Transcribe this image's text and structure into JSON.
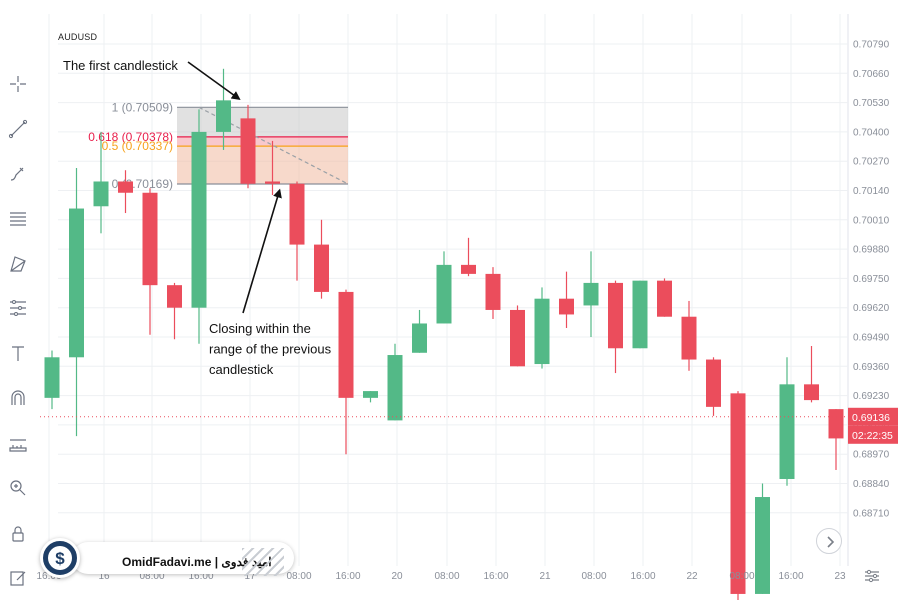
{
  "symbol": "AUDUSD",
  "toolbar": {
    "tools": [
      "crosshair-icon",
      "trend-line-icon",
      "brush-icon",
      "horizontal-lines-icon",
      "pattern-icon",
      "fib-tools-icon",
      "text-icon",
      "magnet-icon",
      "measure-icon",
      "zoom-icon",
      "lock-icon",
      "edit-icon"
    ]
  },
  "watermark": {
    "text": "OmidFadavi.me  |  امید فدوی",
    "coin_symbol": "$"
  },
  "colors": {
    "up": "#53b987",
    "down": "#eb4d5c",
    "grid": "#eef0f3",
    "fib_top_fill": "#c8c8c8",
    "fib_mid_fill": "#f3a3aa",
    "fib_bottom_fill": "#f0b9a0",
    "fib_618": "#e91e4b",
    "fib_05": "#f7a21b",
    "price_badge": "#eb4d5c",
    "coin": "#1e3e66"
  },
  "chart_data": {
    "type": "candlestick",
    "title": "AUDUSD",
    "y_axis": {
      "ticks": [
        "0.70790",
        "0.70660",
        "0.70530",
        "0.70400",
        "0.70270",
        "0.70140",
        "0.70010",
        "0.69880",
        "0.69750",
        "0.69620",
        "0.69490",
        "0.69360",
        "0.69230",
        "0.69100",
        "0.68970",
        "0.68840",
        "0.68710"
      ],
      "ylim": [
        0.6866,
        0.7086
      ]
    },
    "x_axis": {
      "ticks": [
        "16:00",
        "16",
        "08:00",
        "16:00",
        "17",
        "08:00",
        "16:00",
        "20",
        "08:00",
        "16:00",
        "21",
        "08:00",
        "16:00",
        "22",
        "08:00",
        "16:00",
        "23"
      ]
    },
    "current_price": "0.69136",
    "countdown": "02:22:35",
    "candles": [
      {
        "o": 0.6922,
        "h": 0.6943,
        "l": 0.6917,
        "c": 0.694
      },
      {
        "o": 0.694,
        "h": 0.7024,
        "l": 0.6905,
        "c": 0.7006
      },
      {
        "o": 0.7007,
        "h": 0.704,
        "l": 0.6995,
        "c": 0.7018
      },
      {
        "o": 0.7018,
        "h": 0.7023,
        "l": 0.7004,
        "c": 0.7013
      },
      {
        "o": 0.7013,
        "h": 0.7015,
        "l": 0.695,
        "c": 0.6972
      },
      {
        "o": 0.6972,
        "h": 0.6973,
        "l": 0.6948,
        "c": 0.6962
      },
      {
        "o": 0.6962,
        "h": 0.705,
        "l": 0.6946,
        "c": 0.704
      },
      {
        "o": 0.704,
        "h": 0.7068,
        "l": 0.7032,
        "c": 0.7054
      },
      {
        "o": 0.7046,
        "h": 0.7052,
        "l": 0.7015,
        "c": 0.7017
      },
      {
        "o": 0.7018,
        "h": 0.7036,
        "l": 0.7012,
        "c": 0.7017
      },
      {
        "o": 0.7017,
        "h": 0.7018,
        "l": 0.6974,
        "c": 0.699
      },
      {
        "o": 0.699,
        "h": 0.7001,
        "l": 0.6966,
        "c": 0.6969
      },
      {
        "o": 0.6969,
        "h": 0.697,
        "l": 0.6897,
        "c": 0.6922
      },
      {
        "o": 0.6922,
        "h": 0.6925,
        "l": 0.692,
        "c": 0.6925
      },
      {
        "o": 0.6912,
        "h": 0.6946,
        "l": 0.6912,
        "c": 0.6941
      },
      {
        "o": 0.6942,
        "h": 0.6961,
        "l": 0.6942,
        "c": 0.6955
      },
      {
        "o": 0.6955,
        "h": 0.6987,
        "l": 0.6955,
        "c": 0.6981
      },
      {
        "o": 0.6981,
        "h": 0.6993,
        "l": 0.6976,
        "c": 0.6977
      },
      {
        "o": 0.6977,
        "h": 0.698,
        "l": 0.6957,
        "c": 0.6961
      },
      {
        "o": 0.6961,
        "h": 0.6963,
        "l": 0.6936,
        "c": 0.6936
      },
      {
        "o": 0.6937,
        "h": 0.6971,
        "l": 0.6935,
        "c": 0.6966
      },
      {
        "o": 0.6966,
        "h": 0.6978,
        "l": 0.6953,
        "c": 0.6959
      },
      {
        "o": 0.6963,
        "h": 0.6987,
        "l": 0.6949,
        "c": 0.6973
      },
      {
        "o": 0.6973,
        "h": 0.6974,
        "l": 0.6933,
        "c": 0.6944
      },
      {
        "o": 0.6944,
        "h": 0.6974,
        "l": 0.6944,
        "c": 0.6974
      },
      {
        "o": 0.6974,
        "h": 0.6975,
        "l": 0.6958,
        "c": 0.6958
      },
      {
        "o": 0.6958,
        "h": 0.6965,
        "l": 0.6934,
        "c": 0.6939
      },
      {
        "o": 0.6939,
        "h": 0.694,
        "l": 0.6914,
        "c": 0.6918
      },
      {
        "o": 0.6924,
        "h": 0.6925,
        "l": 0.683,
        "c": 0.6835
      },
      {
        "o": 0.6835,
        "h": 0.6884,
        "l": 0.6835,
        "c": 0.6878
      },
      {
        "o": 0.6886,
        "h": 0.694,
        "l": 0.6883,
        "c": 0.6928
      },
      {
        "o": 0.6928,
        "h": 0.6945,
        "l": 0.692,
        "c": 0.6921
      },
      {
        "o": 0.6917,
        "h": 0.6917,
        "l": 0.689,
        "c": 0.6904
      }
    ],
    "fibonacci": {
      "levels": [
        {
          "label": "1 (0.70509)",
          "value": 0.70509,
          "color": "#8a8f99"
        },
        {
          "label": "0.618 (0.70378)",
          "value": 0.70378,
          "color": "#e91e4b"
        },
        {
          "label": "0.5 (0.70337)",
          "value": 0.70337,
          "color": "#f7a21b"
        },
        {
          "label": "0 (0.70169)",
          "value": 0.70169,
          "color": "#8a8f99"
        }
      ],
      "from_candle": 6,
      "to_candle": 12
    },
    "annotations": [
      {
        "text": "The first candlestick",
        "target_candle": 8
      },
      {
        "text": "Closing within the range of the previous candlestick",
        "lines": [
          "Closing within the",
          "range of the previous",
          "candlestick"
        ],
        "target_candle": 9
      }
    ]
  }
}
